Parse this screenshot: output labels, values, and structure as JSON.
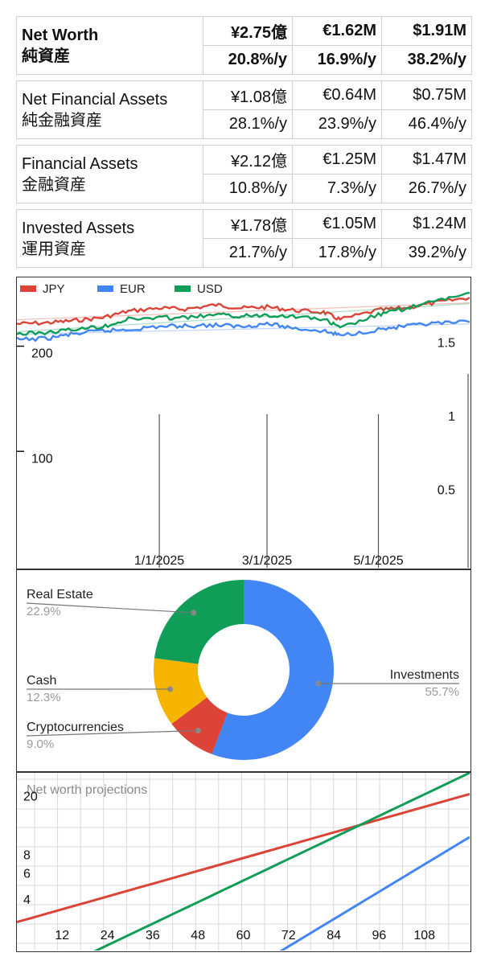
{
  "summary": {
    "rows": [
      {
        "label_en": "Net Worth",
        "label_ja": "純資産",
        "bold": true,
        "values": [
          "¥2.75億",
          "€1.62M",
          "$1.91M"
        ],
        "rates": [
          "20.8%/y",
          "16.9%/y",
          "38.2%/y"
        ]
      },
      {
        "label_en": "Net Financial Assets",
        "label_ja": "純金融資産",
        "bold": false,
        "values": [
          "¥1.08億",
          "€0.64M",
          "$0.75M"
        ],
        "rates": [
          "28.1%/y",
          "23.9%/y",
          "46.4%/y"
        ]
      },
      {
        "label_en": "Financial Assets",
        "label_ja": "金融資産",
        "bold": false,
        "values": [
          "¥2.12億",
          "€1.25M",
          "$1.47M"
        ],
        "rates": [
          "10.8%/y",
          "7.3%/y",
          "26.7%/y"
        ]
      },
      {
        "label_en": "Invested Assets",
        "label_ja": "運用資産",
        "bold": false,
        "values": [
          "¥1.78億",
          "€1.05M",
          "$1.24M"
        ],
        "rates": [
          "21.7%/y",
          "17.8%/y",
          "39.2%/y"
        ]
      }
    ]
  },
  "colors": {
    "jpy": "#db4437",
    "eur": "#4285f4",
    "usd": "#0f9d58",
    "yellow": "#f4b400"
  },
  "chart_data": [
    {
      "type": "line",
      "title": "",
      "legend": "top-left",
      "series": [
        {
          "name": "JPY",
          "color": "#db4437",
          "axis": "left",
          "dates": [
            "2024-10-15",
            "2024-11-01",
            "2024-11-15",
            "2024-12-01",
            "2024-12-15",
            "2025-01-01",
            "2025-01-15",
            "2025-02-01",
            "2025-02-15",
            "2025-03-01",
            "2025-03-15",
            "2025-04-01",
            "2025-04-10",
            "2025-05-01",
            "2025-05-15",
            "2025-06-01",
            "2025-06-20"
          ],
          "values": [
            232,
            233,
            235,
            238,
            244,
            247,
            246,
            250,
            247,
            248,
            245,
            243,
            236,
            245,
            247,
            252,
            257
          ]
        },
        {
          "name": "EUR",
          "color": "#4285f4",
          "axis": "right",
          "dates": [
            "2024-10-15",
            "2024-11-01",
            "2024-11-15",
            "2024-12-01",
            "2024-12-15",
            "2025-01-01",
            "2025-01-15",
            "2025-02-01",
            "2025-02-15",
            "2025-03-01",
            "2025-03-15",
            "2025-04-01",
            "2025-04-10",
            "2025-05-01",
            "2025-05-15",
            "2025-06-01",
            "2025-06-20"
          ],
          "values": [
            1.55,
            1.56,
            1.59,
            1.61,
            1.62,
            1.64,
            1.645,
            1.65,
            1.64,
            1.66,
            1.63,
            1.61,
            1.58,
            1.62,
            1.64,
            1.66,
            1.67
          ]
        },
        {
          "name": "USD",
          "color": "#0f9d58",
          "axis": "right",
          "dates": [
            "2024-10-15",
            "2024-11-01",
            "2024-11-15",
            "2024-12-01",
            "2024-12-15",
            "2025-01-01",
            "2025-01-15",
            "2025-02-01",
            "2025-02-15",
            "2025-03-01",
            "2025-03-15",
            "2025-04-01",
            "2025-04-10",
            "2025-05-01",
            "2025-05-15",
            "2025-06-01",
            "2025-06-20"
          ],
          "values": [
            1.59,
            1.6,
            1.62,
            1.64,
            1.69,
            1.7,
            1.7,
            1.72,
            1.71,
            1.72,
            1.71,
            1.69,
            1.63,
            1.72,
            1.76,
            1.81,
            1.87
          ]
        }
      ],
      "x_ticks": [
        "1/1/2025",
        "3/1/2025",
        "5/1/2025"
      ],
      "x_tick_dates": [
        "2025-01-01",
        "2025-03-01",
        "2025-05-01"
      ],
      "xlim": [
        "2024-10-15",
        "2025-06-20"
      ],
      "left_ticks": [
        "100",
        "200"
      ],
      "left_tick_values": [
        100,
        200
      ],
      "left_ylim": [
        0,
        270
      ],
      "right_ticks": [
        "0.5",
        "1",
        "1.5"
      ],
      "right_tick_values": [
        0.5,
        1,
        1.5
      ],
      "right_ylim": [
        0,
        1.93
      ],
      "trendlines": true,
      "grid": false
    },
    {
      "type": "pie",
      "donut": true,
      "legend": "labeled",
      "slices": [
        {
          "label": "Investments",
          "value": 55.7,
          "pct": "55.7%",
          "color": "#4285f4"
        },
        {
          "label": "Cryptocurrencies",
          "value": 9.0,
          "pct": "9.0%",
          "color": "#db4437"
        },
        {
          "label": "Cash",
          "value": 12.3,
          "pct": "12.3%",
          "color": "#f4b400"
        },
        {
          "label": "Real Estate",
          "value": 22.9,
          "pct": "22.9%",
          "color": "#0f9d58"
        }
      ]
    },
    {
      "type": "line",
      "title": "Net worth projections",
      "grid": true,
      "series": [
        {
          "color": "#db4437",
          "x": [
            0,
            120
          ],
          "y": [
            2.8,
            20.5
          ]
        },
        {
          "color": "#4285f4",
          "x": [
            0,
            120
          ],
          "y": [
            0.15,
            10.5
          ]
        },
        {
          "color": "#0f9d58",
          "x": [
            0,
            120
          ],
          "y": [
            1.0,
            28.5
          ]
        }
      ],
      "x_ticks": [
        "12",
        "24",
        "36",
        "48",
        "60",
        "72",
        "84",
        "96",
        "108"
      ],
      "x_tick_values": [
        12,
        24,
        36,
        48,
        60,
        72,
        84,
        96,
        108
      ],
      "xlim": [
        0,
        120
      ],
      "y_ticks": [
        "4",
        "6",
        "8",
        "20"
      ],
      "y_tick_values": [
        4,
        6,
        8,
        20
      ],
      "y_scale": "log",
      "ylim": [
        1.8,
        28.5
      ]
    }
  ]
}
